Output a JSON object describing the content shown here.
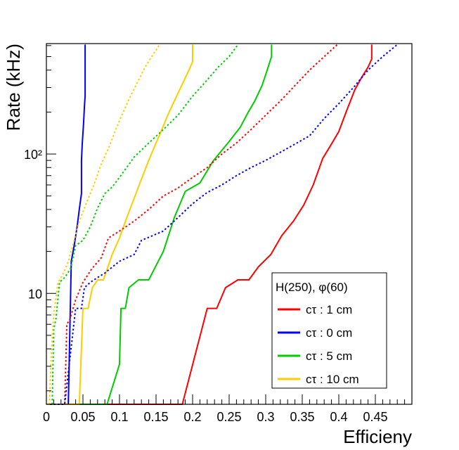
{
  "chart_data": {
    "type": "line",
    "xlabel": "Efficieny",
    "ylabel": "Rate (kHz)",
    "xlim": [
      0,
      0.5
    ],
    "ylim": [
      1.6,
      620
    ],
    "y_scale": "log",
    "x_ticks": [
      0,
      0.05,
      0.1,
      0.15,
      0.2,
      0.25,
      0.3,
      0.35,
      0.4,
      0.45
    ],
    "x_tick_labels": [
      "0",
      "0.05",
      "0.1",
      "0.15",
      "0.2",
      "0.25",
      "0.3",
      "0.35",
      "0.4",
      "0.45"
    ],
    "y_ticks": [
      10,
      100
    ],
    "y_tick_labels": [
      "10",
      "10²"
    ],
    "grid": false,
    "legend": {
      "title": "H(250), φ(60)",
      "placement": "bottom-right",
      "entries": [
        {
          "label": "cτ : 1 cm",
          "color": "#ff0000"
        },
        {
          "label": "cτ : 0 cm",
          "color": "#0000ff"
        },
        {
          "label": "cτ : 5 cm",
          "color": "#00cc00"
        },
        {
          "label": "cτ : 10 cm",
          "color": "#ffcc00"
        }
      ]
    },
    "series": [
      {
        "color": "#ff0000",
        "style": "solid",
        "points": [
          [
            0.0,
            1.6
          ],
          [
            0.186,
            1.6
          ],
          [
            0.22,
            7.8
          ],
          [
            0.233,
            7.8
          ],
          [
            0.245,
            11
          ],
          [
            0.262,
            12.5
          ],
          [
            0.277,
            12.5
          ],
          [
            0.29,
            15.5
          ],
          [
            0.307,
            19
          ],
          [
            0.322,
            26
          ],
          [
            0.338,
            33
          ],
          [
            0.352,
            43
          ],
          [
            0.365,
            60
          ],
          [
            0.378,
            93
          ],
          [
            0.39,
            118
          ],
          [
            0.4,
            145
          ],
          [
            0.41,
            200
          ],
          [
            0.422,
            290
          ],
          [
            0.432,
            360
          ],
          [
            0.44,
            420
          ],
          [
            0.445,
            480
          ],
          [
            0.445,
            610
          ]
        ]
      },
      {
        "color": "#0000ff",
        "style": "solid",
        "points": [
          [
            0.0,
            1.6
          ],
          [
            0.03,
            1.6
          ],
          [
            0.034,
            17
          ],
          [
            0.038,
            22
          ],
          [
            0.042,
            30
          ],
          [
            0.045,
            40
          ],
          [
            0.048,
            52
          ],
          [
            0.048,
            90
          ],
          [
            0.049,
            118
          ],
          [
            0.051,
            170
          ],
          [
            0.052,
            220
          ],
          [
            0.053,
            260
          ],
          [
            0.053,
            610
          ]
        ]
      },
      {
        "color": "#00cc00",
        "style": "solid",
        "points": [
          [
            0.0,
            1.6
          ],
          [
            0.083,
            1.6
          ],
          [
            0.1,
            3.1
          ],
          [
            0.102,
            7.8
          ],
          [
            0.108,
            7.8
          ],
          [
            0.113,
            11
          ],
          [
            0.126,
            12.5
          ],
          [
            0.14,
            12.5
          ],
          [
            0.16,
            20
          ],
          [
            0.175,
            35
          ],
          [
            0.19,
            54
          ],
          [
            0.21,
            62
          ],
          [
            0.228,
            89
          ],
          [
            0.25,
            123
          ],
          [
            0.265,
            155
          ],
          [
            0.275,
            195
          ],
          [
            0.285,
            240
          ],
          [
            0.295,
            310
          ],
          [
            0.302,
            400
          ],
          [
            0.308,
            500
          ],
          [
            0.308,
            610
          ]
        ]
      },
      {
        "color": "#ffcc00",
        "style": "solid",
        "points": [
          [
            0.0,
            1.6
          ],
          [
            0.045,
            1.6
          ],
          [
            0.05,
            7.8
          ],
          [
            0.057,
            7.8
          ],
          [
            0.063,
            11
          ],
          [
            0.07,
            12.5
          ],
          [
            0.078,
            12.5
          ],
          [
            0.09,
            19
          ],
          [
            0.1,
            25
          ],
          [
            0.11,
            35
          ],
          [
            0.12,
            48
          ],
          [
            0.13,
            66
          ],
          [
            0.14,
            90
          ],
          [
            0.15,
            120
          ],
          [
            0.158,
            150
          ],
          [
            0.165,
            185
          ],
          [
            0.175,
            240
          ],
          [
            0.185,
            310
          ],
          [
            0.195,
            400
          ],
          [
            0.2,
            460
          ],
          [
            0.2,
            610
          ]
        ]
      },
      {
        "color": "#ff0000",
        "style": "dotted",
        "points": [
          [
            0.025,
            1.6
          ],
          [
            0.028,
            6.0
          ],
          [
            0.032,
            6.5
          ],
          [
            0.04,
            9.0
          ],
          [
            0.05,
            12.0
          ],
          [
            0.062,
            15.0
          ],
          [
            0.075,
            18.0
          ],
          [
            0.085,
            25.0
          ],
          [
            0.1,
            28.0
          ],
          [
            0.12,
            33.0
          ],
          [
            0.14,
            40.0
          ],
          [
            0.16,
            50.0
          ],
          [
            0.18,
            57.0
          ],
          [
            0.2,
            68.0
          ],
          [
            0.22,
            80.0
          ],
          [
            0.24,
            100.0
          ],
          [
            0.26,
            120.0
          ],
          [
            0.28,
            150.0
          ],
          [
            0.3,
            190.0
          ],
          [
            0.32,
            240.0
          ],
          [
            0.34,
            310.0
          ],
          [
            0.36,
            400.0
          ],
          [
            0.38,
            500.0
          ],
          [
            0.398,
            610.0
          ]
        ]
      },
      {
        "color": "#0000ff",
        "style": "dotted",
        "points": [
          [
            0.005,
            1.6
          ],
          [
            0.025,
            1.6
          ],
          [
            0.04,
            7.8
          ],
          [
            0.048,
            7.8
          ],
          [
            0.052,
            11
          ],
          [
            0.06,
            12.0
          ],
          [
            0.07,
            13.0
          ],
          [
            0.08,
            14.0
          ],
          [
            0.1,
            17.0
          ],
          [
            0.12,
            19.0
          ],
          [
            0.13,
            24.0
          ],
          [
            0.16,
            28.0
          ],
          [
            0.18,
            35.0
          ],
          [
            0.2,
            44.0
          ],
          [
            0.22,
            53.0
          ],
          [
            0.24,
            60.0
          ],
          [
            0.26,
            70.0
          ],
          [
            0.28,
            80.0
          ],
          [
            0.3,
            90.0
          ],
          [
            0.33,
            110.0
          ],
          [
            0.36,
            135.0
          ],
          [
            0.38,
            180.0
          ],
          [
            0.4,
            230.0
          ],
          [
            0.42,
            300.0
          ],
          [
            0.44,
            400.0
          ],
          [
            0.46,
            500.0
          ],
          [
            0.48,
            610.0
          ]
        ]
      },
      {
        "color": "#00cc00",
        "style": "dotted",
        "points": [
          [
            0.008,
            1.6
          ],
          [
            0.01,
            5.5
          ],
          [
            0.013,
            6.5
          ],
          [
            0.018,
            12.0
          ],
          [
            0.025,
            13.0
          ],
          [
            0.033,
            15.0
          ],
          [
            0.04,
            22.0
          ],
          [
            0.05,
            24.0
          ],
          [
            0.06,
            30.0
          ],
          [
            0.07,
            41.0
          ],
          [
            0.08,
            52.0
          ],
          [
            0.09,
            58.0
          ],
          [
            0.1,
            68.0
          ],
          [
            0.12,
            95.0
          ],
          [
            0.14,
            120.0
          ],
          [
            0.16,
            150.0
          ],
          [
            0.18,
            190.0
          ],
          [
            0.2,
            260.0
          ],
          [
            0.22,
            340.0
          ],
          [
            0.235,
            420.0
          ],
          [
            0.25,
            500.0
          ],
          [
            0.262,
            610.0
          ]
        ]
      },
      {
        "color": "#ffcc00",
        "style": "dotted",
        "points": [
          [
            0.004,
            1.6
          ],
          [
            0.007,
            4.0
          ],
          [
            0.01,
            7.0
          ],
          [
            0.016,
            12.0
          ],
          [
            0.022,
            13.5
          ],
          [
            0.03,
            17.0
          ],
          [
            0.036,
            22.0
          ],
          [
            0.045,
            33.0
          ],
          [
            0.055,
            45.0
          ],
          [
            0.065,
            60.0
          ],
          [
            0.075,
            85.0
          ],
          [
            0.085,
            110.0
          ],
          [
            0.095,
            150.0
          ],
          [
            0.105,
            200.0
          ],
          [
            0.115,
            260.0
          ],
          [
            0.125,
            330.0
          ],
          [
            0.135,
            420.0
          ],
          [
            0.145,
            510.0
          ],
          [
            0.155,
            610.0
          ]
        ]
      }
    ]
  }
}
